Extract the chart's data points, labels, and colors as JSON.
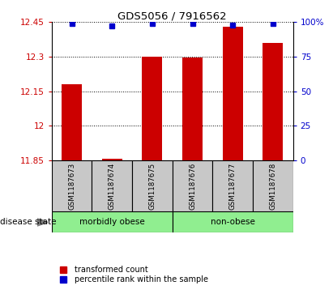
{
  "title": "GDS5056 / 7916562",
  "samples": [
    "GSM1187673",
    "GSM1187674",
    "GSM1187675",
    "GSM1187676",
    "GSM1187677",
    "GSM1187678"
  ],
  "red_values": [
    12.18,
    11.856,
    12.3,
    12.295,
    12.43,
    12.36
  ],
  "blue_values": [
    99,
    97,
    99,
    99,
    98,
    99
  ],
  "ylim_left": [
    11.85,
    12.45
  ],
  "ylim_right": [
    0,
    100
  ],
  "yticks_left": [
    11.85,
    12.0,
    12.15,
    12.3,
    12.45
  ],
  "yticks_right": [
    0,
    25,
    50,
    75,
    100
  ],
  "ytick_labels_left": [
    "11.85",
    "12",
    "12.15",
    "12.3",
    "12.45"
  ],
  "ytick_labels_right": [
    "0",
    "25",
    "50",
    "75",
    "100%"
  ],
  "disease_state_label": "disease state",
  "legend_red_label": "transformed count",
  "legend_blue_label": "percentile rank within the sample",
  "bar_color": "#CC0000",
  "dot_color": "#0000CC",
  "bar_width": 0.5,
  "baseline": 11.85,
  "sample_box_color": "#C8C8C8",
  "group_box_color": "#90EE90",
  "background_color": "#ffffff"
}
